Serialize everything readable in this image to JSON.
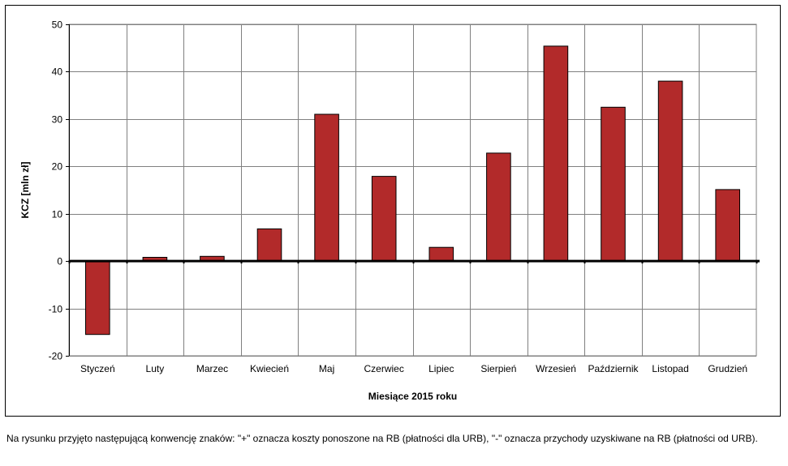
{
  "chart_data": {
    "type": "bar",
    "categories": [
      "Styczeń",
      "Luty",
      "Marzec",
      "Kwiecień",
      "Maj",
      "Czerwiec",
      "Lipiec",
      "Sierpień",
      "Wrzesień",
      "Październik",
      "Listopad",
      "Grudzień"
    ],
    "values": [
      -15.5,
      0.8,
      1.0,
      6.8,
      31.0,
      17.9,
      2.9,
      22.8,
      45.4,
      32.5,
      38.0,
      15.1
    ],
    "ylabel": "KCZ [mln zł]",
    "xlabel": "Miesiące 2015  roku",
    "ylim": [
      -20,
      50
    ],
    "yticks": [
      -20,
      -10,
      0,
      10,
      20,
      30,
      40,
      50
    ],
    "grid": true,
    "bar_color": "#b22a2a"
  },
  "caption": "Na rysunku przyjęto następującą konwencję znaków: \"+\" oznacza koszty ponoszone na RB (płatności dla URB), \"-\" oznacza przychody uzyskiwane na RB (płatności od URB)."
}
